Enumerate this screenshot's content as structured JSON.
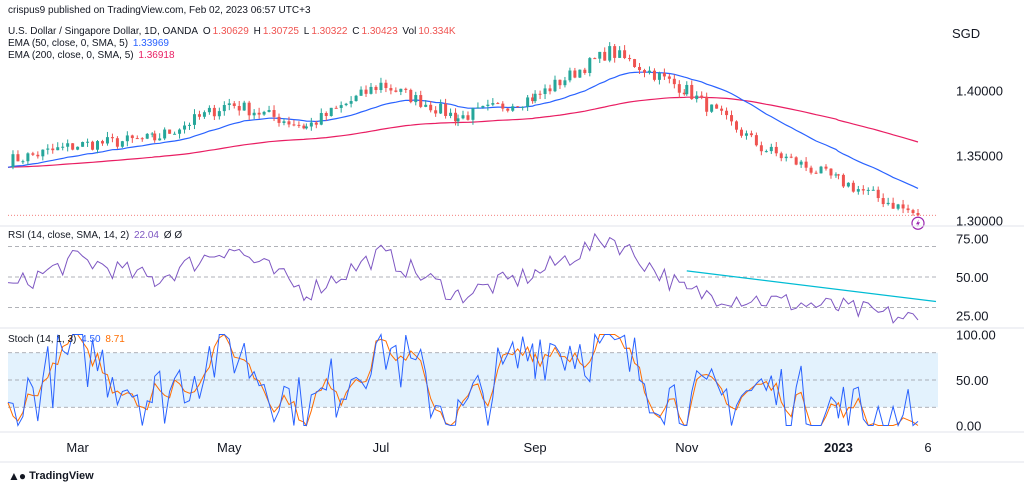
{
  "header": {
    "published": "crispus9 published on TradingView.com, Feb 02, 2023 06:57 UTC+3",
    "symbol": "U.S. Dollar / Singapore Dollar, 1D, OANDA",
    "open_label": "O",
    "open": "1.30629",
    "high_label": "H",
    "high": "1.30725",
    "low_label": "L",
    "low": "1.30322",
    "close_label": "C",
    "close": "1.30423",
    "vol_label": "Vol",
    "vol": "10.334K",
    "ema50_label": "EMA (50, close, 0, SMA, 5)",
    "ema50_value": "1.33969",
    "ema200_label": "EMA (200, close, 0, SMA, 5)",
    "ema200_value": "1.36918",
    "rsi_label": "RSI (14, close, SMA, 14, 2)",
    "rsi_value": "22.04",
    "rsi_empty": "Ø  Ø",
    "stoch_label": "Stoch (14, 1, 3)",
    "stoch_k": "4.50",
    "stoch_d": "8.71",
    "currency": "SGD"
  },
  "footer": {
    "brand": "TradingView",
    "logo_icon": "tradingview-logo-icon"
  },
  "colors": {
    "up": "#26a69a",
    "down": "#ef5350",
    "ema50": "#2962ff",
    "ema200": "#e91e63",
    "rsi": "#7e57c2",
    "stoch_k": "#2962ff",
    "stoch_d": "#ff6d00",
    "trendline": "#00bcd4",
    "band": "#e3f2fd"
  },
  "chart_data": [
    {
      "type": "candlestick",
      "title": "U.S. Dollar / Singapore Dollar, 1D, OANDA",
      "y_ticks": [
        "1.30000",
        "1.35000",
        "1.40000"
      ],
      "ylim": [
        1.2975,
        1.4525
      ],
      "x_ticks": [
        "Mar",
        "May",
        "Jul",
        "Sep",
        "Nov",
        "2023",
        "6"
      ],
      "current_close": 1.30423,
      "grid": false,
      "series": [
        {
          "name": "EMA (50, close, 0, SMA, 5)",
          "last": 1.33969
        },
        {
          "name": "EMA (200, close, 0, SMA, 5)",
          "last": 1.36918
        }
      ],
      "x": [
        "2022-02-01",
        "2022-03-01",
        "2022-04-01",
        "2022-05-01",
        "2022-06-01",
        "2022-07-01",
        "2022-08-01",
        "2022-09-01",
        "2022-10-01",
        "2022-11-01",
        "2022-12-01",
        "2023-01-01",
        "2023-02-02"
      ],
      "close": [
        1.346,
        1.358,
        1.363,
        1.39,
        1.372,
        1.405,
        1.379,
        1.395,
        1.43,
        1.4,
        1.356,
        1.331,
        1.3042
      ]
    },
    {
      "type": "line",
      "title": "RSI (14, close, SMA, 14, 2)",
      "y_ticks": [
        "25.00",
        "50.00",
        "75.00"
      ],
      "ylim": [
        18,
        82
      ],
      "levels": [
        30,
        50,
        70
      ],
      "last": 22.04,
      "x": [
        "2022-02-01",
        "2022-03-01",
        "2022-04-01",
        "2022-05-01",
        "2022-06-01",
        "2022-07-01",
        "2022-08-01",
        "2022-09-01",
        "2022-10-01",
        "2022-11-01",
        "2022-12-01",
        "2023-01-01",
        "2023-02-02"
      ],
      "values": [
        42,
        62,
        48,
        70,
        40,
        65,
        38,
        52,
        76,
        40,
        35,
        30,
        22
      ],
      "trendline": {
        "from": [
          "2022-11-01",
          54
        ],
        "to": [
          "2023-02-02",
          34
        ]
      }
    },
    {
      "type": "line",
      "title": "Stoch (14, 1, 3)",
      "y_ticks": [
        "0.00",
        "50.00",
        "100.00"
      ],
      "ylim": [
        -5,
        105
      ],
      "levels": [
        20,
        50,
        80
      ],
      "x": [
        "2022-02-01",
        "2022-03-01",
        "2022-04-01",
        "2022-05-01",
        "2022-06-01",
        "2022-07-01",
        "2022-08-01",
        "2022-09-01",
        "2022-10-01",
        "2022-11-01",
        "2022-12-01",
        "2023-01-01",
        "2023-02-02"
      ],
      "series": [
        {
          "name": "K",
          "values": [
            10,
            85,
            30,
            90,
            10,
            95,
            5,
            90,
            85,
            20,
            40,
            15,
            4.5
          ]
        },
        {
          "name": "D",
          "values": [
            15,
            75,
            40,
            80,
            20,
            85,
            15,
            80,
            88,
            25,
            35,
            18,
            8.71
          ]
        }
      ]
    }
  ]
}
